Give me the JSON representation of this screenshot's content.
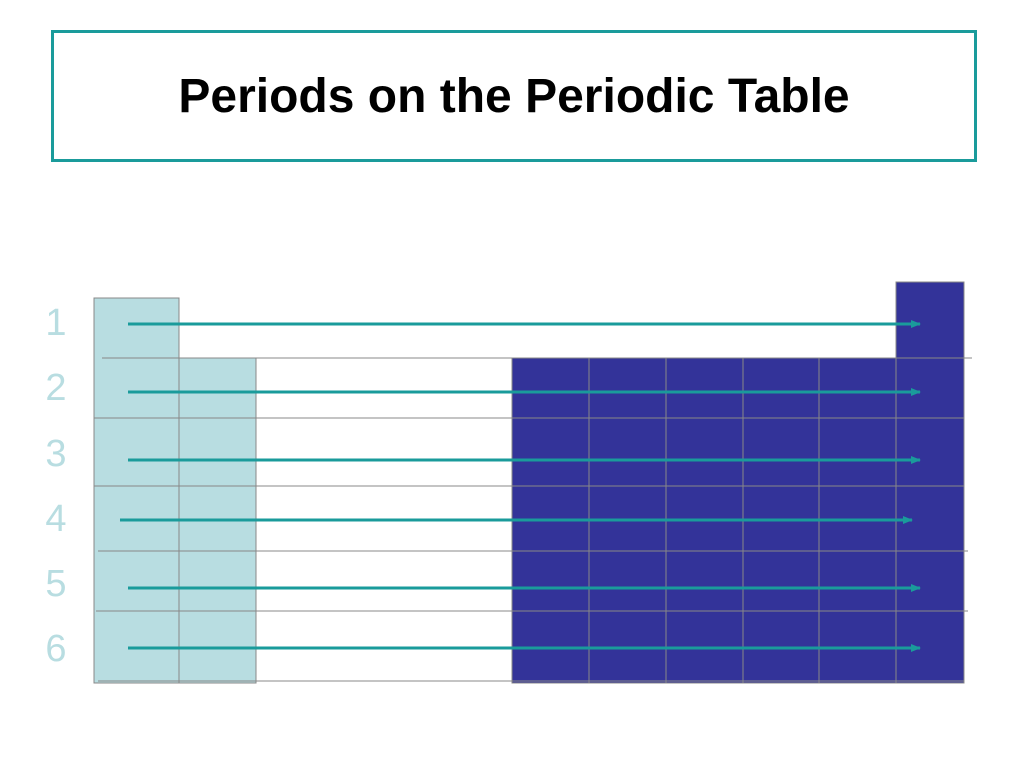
{
  "slide": {
    "title": "Periods on the Periodic Table"
  },
  "periods": [
    {
      "number": "1"
    },
    {
      "number": "2"
    },
    {
      "number": "3"
    },
    {
      "number": "4"
    },
    {
      "number": "5"
    },
    {
      "number": "6"
    }
  ],
  "colors": {
    "title_border": "#1a9b9b",
    "arrow": "#1a9b9b",
    "s_block": "#b8dde1",
    "p_block": "#333399",
    "grid_line": "#888888",
    "period_label": "#b8dde1"
  }
}
